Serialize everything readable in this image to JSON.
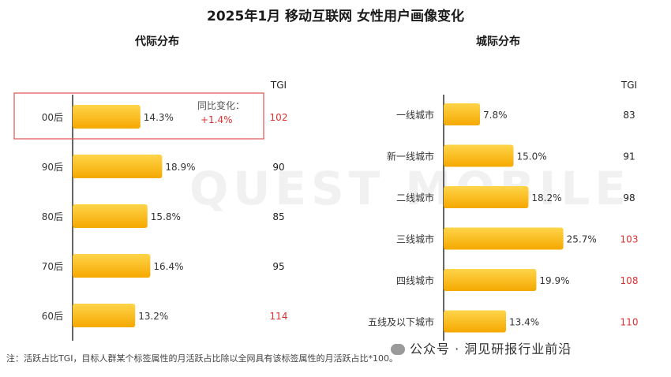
{
  "title": "2025年1月 移动互联网 女性用户画像变化",
  "colors": {
    "bar_top": "#ffd54a",
    "bar_bottom": "#f5a800",
    "tgi_high": "#e03030",
    "axis": "#333333",
    "highlight_box": "#e05050"
  },
  "watermark": "QUEST MOBILE",
  "note": "注：活跃占比TGI，目标人群某个标签属性的月活跃占比除以全网具有该标签属性的月活跃占比*100。",
  "source_mark": {
    "icon": "wechat-icon",
    "text": "公众号 · 洞见研报行业前沿"
  },
  "chart_data": [
    {
      "type": "bar",
      "orientation": "horizontal",
      "title": "代际分布",
      "categories": [
        "00后",
        "90后",
        "80后",
        "70后",
        "60后"
      ],
      "values": [
        14.3,
        18.9,
        15.8,
        16.4,
        13.2
      ],
      "value_labels": [
        "14.3%",
        "18.9%",
        "15.8%",
        "16.4%",
        "13.2%"
      ],
      "tgi_header": "TGI",
      "tgi": [
        102,
        90,
        85,
        95,
        114
      ],
      "tgi_highlight": [
        true,
        false,
        false,
        false,
        true
      ],
      "annotation": {
        "category": "00后",
        "label": "同比变化：",
        "value": "+1.4%"
      }
    },
    {
      "type": "bar",
      "orientation": "horizontal",
      "title": "城际分布",
      "categories": [
        "一线城市",
        "新一线城市",
        "二线城市",
        "三线城市",
        "四线城市",
        "五线及以下城市"
      ],
      "values": [
        7.8,
        15.0,
        18.2,
        25.7,
        19.9,
        13.4
      ],
      "value_labels": [
        "7.8%",
        "15.0%",
        "18.2%",
        "25.7%",
        "19.9%",
        "13.4%"
      ],
      "tgi_header": "TGI",
      "tgi": [
        83,
        91,
        98,
        103,
        108,
        110
      ],
      "tgi_highlight": [
        false,
        false,
        false,
        true,
        true,
        true
      ]
    }
  ]
}
